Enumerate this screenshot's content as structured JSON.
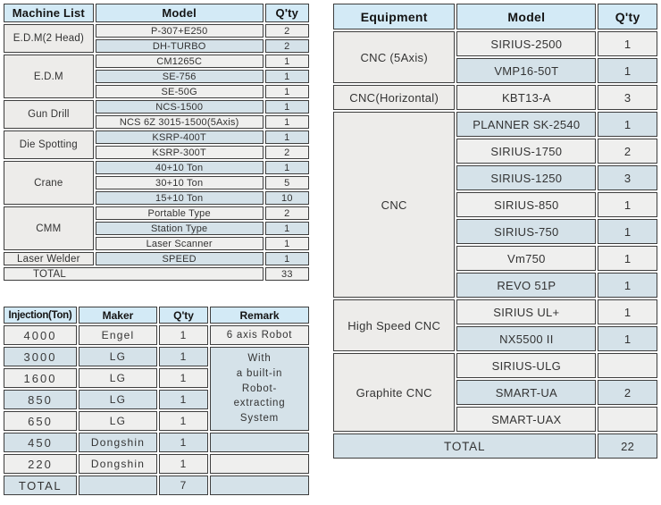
{
  "colors": {
    "header_bg": "#d3eaf6",
    "row_blue": "#d5e2e9",
    "row_gray": "#efefee",
    "category_bg": "#edecea",
    "border": "#3e3e3e"
  },
  "machine_list": {
    "headers": [
      "Machine List",
      "Model",
      "Q'ty"
    ],
    "groups": [
      {
        "category": "E.D.M(2 Head)",
        "rows": [
          {
            "model": "P-307+E250",
            "qty": "2"
          },
          {
            "model": "DH-TURBO",
            "qty": "2"
          }
        ]
      },
      {
        "category": "E.D.M",
        "rows": [
          {
            "model": "CM1265C",
            "qty": "1"
          },
          {
            "model": "SE-756",
            "qty": "1"
          },
          {
            "model": "SE-50G",
            "qty": "1"
          }
        ]
      },
      {
        "category": "Gun Drill",
        "rows": [
          {
            "model": "NCS-1500",
            "qty": "1"
          },
          {
            "model": "NCS 6Z 3015-1500(5Axis)",
            "qty": "1"
          }
        ]
      },
      {
        "category": "Die Spotting",
        "rows": [
          {
            "model": "KSRP-400T",
            "qty": "1"
          },
          {
            "model": "KSRP-300T",
            "qty": "2"
          }
        ]
      },
      {
        "category": "Crane",
        "rows": [
          {
            "model": "40+10 Ton",
            "qty": "1"
          },
          {
            "model": "30+10 Ton",
            "qty": "5"
          },
          {
            "model": "15+10 Ton",
            "qty": "10"
          }
        ]
      },
      {
        "category": "CMM",
        "rows": [
          {
            "model": "Portable Type",
            "qty": "2"
          },
          {
            "model": "Station Type",
            "qty": "1"
          },
          {
            "model": "Laser Scanner",
            "qty": "1"
          }
        ]
      },
      {
        "category": "Laser Welder",
        "rows": [
          {
            "model": "SPEED",
            "qty": "1"
          }
        ]
      }
    ],
    "total": {
      "label": "TOTAL",
      "qty": "33"
    }
  },
  "injection": {
    "headers": [
      "Injection(Ton)",
      "Maker",
      "Q'ty",
      "Remark"
    ],
    "rows": [
      {
        "ton": "4000",
        "maker": "Engel",
        "qty": "1",
        "remark": "6 axis Robot"
      },
      {
        "ton": "3000",
        "maker": "LG",
        "qty": "1"
      },
      {
        "ton": "1600",
        "maker": "LG",
        "qty": "1"
      },
      {
        "ton": "850",
        "maker": "LG",
        "qty": "1"
      },
      {
        "ton": "650",
        "maker": "LG",
        "qty": "1"
      },
      {
        "ton": "450",
        "maker": "Dongshin",
        "qty": "1",
        "remark": ""
      },
      {
        "ton": "220",
        "maker": "Dongshin",
        "qty": "1",
        "remark": ""
      }
    ],
    "merged_remark": "With\na built-in\nRobot-\nextracting\nSystem",
    "total": {
      "label": "TOTAL",
      "maker": "",
      "qty": "7",
      "remark": ""
    }
  },
  "equipment": {
    "headers": [
      "Equipment",
      "Model",
      "Q'ty"
    ],
    "groups": [
      {
        "category": "CNC (5Axis)",
        "rows": [
          {
            "model": "SIRIUS-2500",
            "qty": "1"
          },
          {
            "model": "VMP16-50T",
            "qty": "1"
          }
        ]
      },
      {
        "category": "CNC(Horizontal)",
        "rows": [
          {
            "model": "KBT13-A",
            "qty": "3"
          }
        ]
      },
      {
        "category": "CNC",
        "rows": [
          {
            "model": "PLANNER SK-2540",
            "qty": "1"
          },
          {
            "model": "SIRIUS-1750",
            "qty": "2"
          },
          {
            "model": "SIRIUS-1250",
            "qty": "3"
          },
          {
            "model": "SIRIUS-850",
            "qty": "1"
          },
          {
            "model": "SIRIUS-750",
            "qty": "1"
          },
          {
            "model": "Vm750",
            "qty": "1"
          },
          {
            "model": "REVO 51P",
            "qty": "1"
          }
        ]
      },
      {
        "category": "High Speed CNC",
        "rows": [
          {
            "model": "SIRIUS UL+",
            "qty": "1"
          },
          {
            "model": "NX5500 II",
            "qty": "1"
          }
        ]
      },
      {
        "category": "Graphite CNC",
        "rows": [
          {
            "model": "SIRIUS-ULG",
            "qty": ""
          },
          {
            "model": "SMART-UA",
            "qty": "2"
          },
          {
            "model": "SMART-UAX",
            "qty": ""
          }
        ]
      }
    ],
    "total": {
      "label": "TOTAL",
      "qty": "22"
    }
  }
}
